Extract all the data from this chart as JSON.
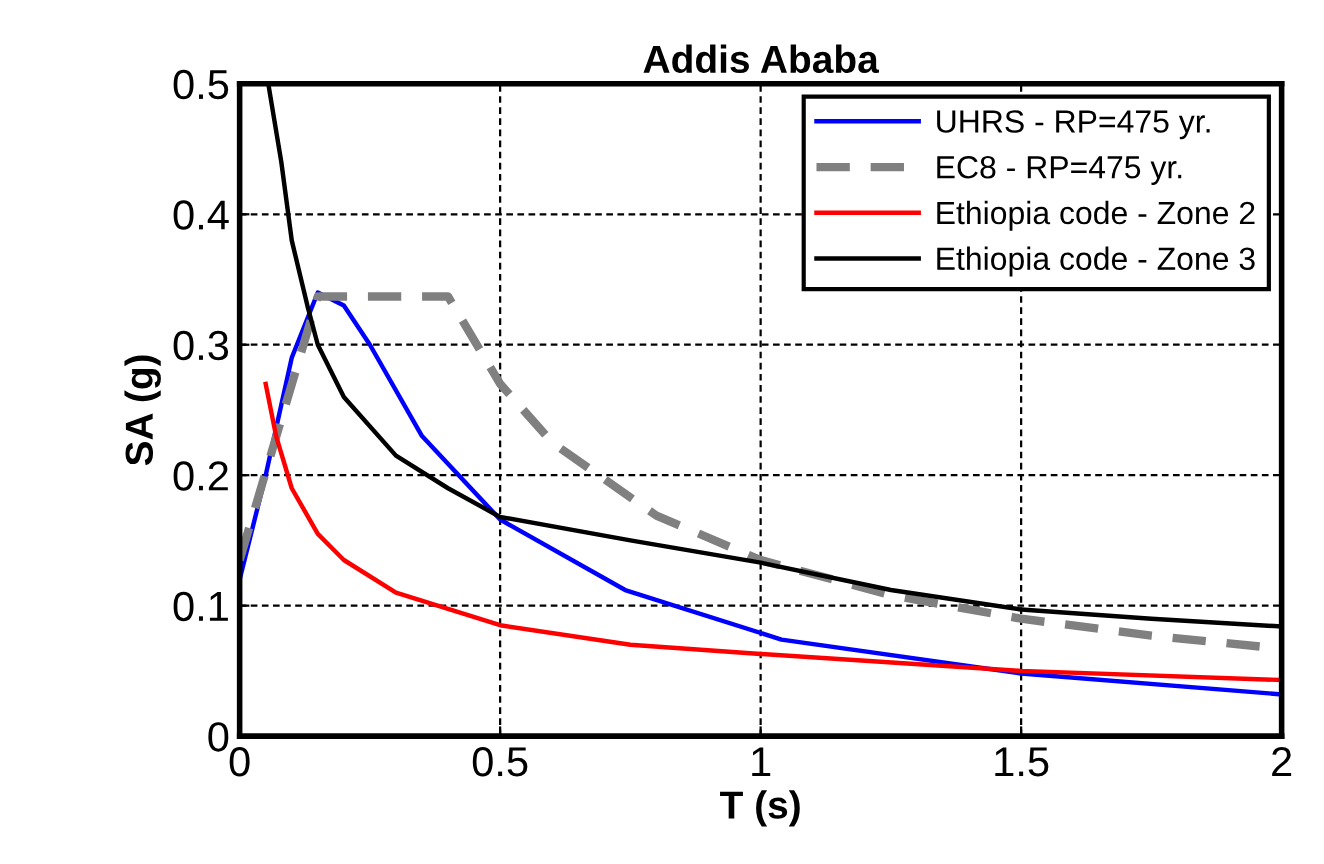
{
  "chart_data": {
    "type": "line",
    "title": "Addis Ababa",
    "xlabel": "T (s)",
    "ylabel": "SA (g)",
    "xlim": [
      0,
      2
    ],
    "ylim": [
      0,
      0.5
    ],
    "xticks": [
      0,
      0.5,
      1,
      1.5,
      2
    ],
    "yticks": [
      0,
      0.1,
      0.2,
      0.3,
      0.4,
      0.5
    ],
    "grid": true,
    "legend": "top right",
    "marker": "none",
    "series": [
      {
        "name": "UHRS - RP=475 yr.",
        "color": "#0000ff",
        "line_style": "solid",
        "x": [
          0,
          0.05,
          0.1,
          0.15,
          0.2,
          0.25,
          0.35,
          0.5,
          0.74,
          1.04,
          1.5,
          2
        ],
        "values": [
          0.12,
          0.2,
          0.29,
          0.34,
          0.33,
          0.3,
          0.23,
          0.166,
          0.112,
          0.074,
          0.048,
          0.032
        ]
      },
      {
        "name": "EC8 - RP=475 yr.",
        "color": "#808080",
        "line_style": "dashed",
        "x": [
          0,
          0.15,
          0.4,
          0.5,
          0.6,
          0.8,
          1,
          1.25,
          1.5,
          1.75,
          2
        ],
        "values": [
          0.135,
          0.337,
          0.337,
          0.27,
          0.225,
          0.169,
          0.135,
          0.108,
          0.09,
          0.077,
          0.067
        ]
      },
      {
        "name": "Ethiopia code - Zone 2",
        "color": "#ff0000",
        "line_style": "solid",
        "x": [
          0.05,
          0.07,
          0.1,
          0.15,
          0.2,
          0.3,
          0.5,
          0.75,
          1,
          1.5,
          2
        ],
        "values": [
          0.27,
          0.23,
          0.19,
          0.155,
          0.135,
          0.11,
          0.085,
          0.07,
          0.063,
          0.05,
          0.043
        ]
      },
      {
        "name": "Ethiopia code - Zone 3",
        "color": "#000000",
        "line_style": "solid",
        "x": [
          0.055,
          0.08,
          0.1,
          0.13,
          0.15,
          0.2,
          0.3,
          0.4,
          0.5,
          0.75,
          1,
          1.25,
          1.5,
          1.75,
          2
        ],
        "values": [
          0.5,
          0.44,
          0.38,
          0.33,
          0.3,
          0.26,
          0.215,
          0.19,
          0.168,
          0.15,
          0.133,
          0.112,
          0.097,
          0.09,
          0.084
        ]
      }
    ]
  }
}
